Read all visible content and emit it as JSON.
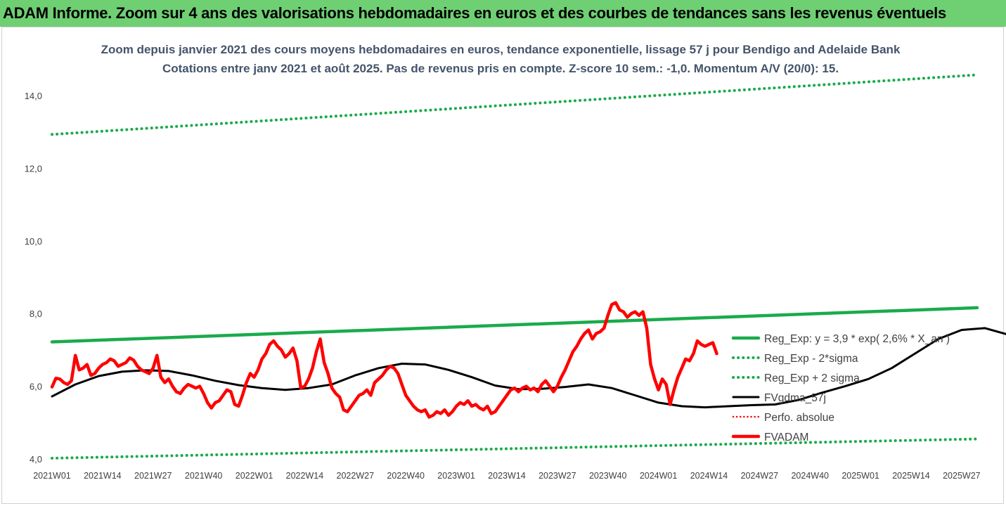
{
  "banner": {
    "title": "ADAM Informe. Zoom sur 4 ans des valorisations hebdomadaires en euros et des courbes de tendances sans les revenus éventuels"
  },
  "colors": {
    "banner_bg": "#6fcf73",
    "reg_green": "#1aab4b",
    "fv_red": "#ff0000",
    "fv_black": "#000000",
    "axis_text": "#404040",
    "title_text": "#44546a"
  },
  "chart_data": {
    "type": "line",
    "title": "Zoom depuis janvier 2021 des cours moyens hebdomadaires en euros, tendance exponentielle, lissage 57 j pour Bendigo and Adelaide Bank",
    "subtitle": "Cotations entre janv 2021 et août 2025.  Pas de revenus pris en compte. Z-score 10 sem.: -1,0. Momentum A/V (20/0): 15.",
    "xlabel": "",
    "ylabel": "",
    "ylim": [
      4.0,
      14.0
    ],
    "yticks": [
      "4,0",
      "6,0",
      "8,0",
      "10,0",
      "12,0",
      "14,0"
    ],
    "xticks": [
      "2021W01",
      "2021W14",
      "2021W27",
      "2021W40",
      "2022W01",
      "2022W14",
      "2022W27",
      "2022W40",
      "2023W01",
      "2023W14",
      "2023W27",
      "2023W40",
      "2024W01",
      "2024W14",
      "2024W27",
      "2024W40",
      "2025W01",
      "2025W14",
      "2025W27"
    ],
    "x_range_weeks": [
      0,
      238
    ],
    "grid": false,
    "legend_position": "right",
    "legend": [
      "Reg_Exp: y = 3,9 * exp( 2,6% *  X_an )",
      "Reg_Exp - 2*sigma",
      "Reg_Exp + 2 sigma",
      "FVgdma_57j",
      "Perfo. absolue",
      "FVADAM"
    ],
    "series": [
      {
        "name": "Reg_Exp: y = 3,9 * exp( 2,6% *  X_an )",
        "style": "solid",
        "color": "#1aab4b",
        "points": [
          [
            0,
            7.22
          ],
          [
            238,
            8.16
          ]
        ]
      },
      {
        "name": "Reg_Exp - 2*sigma",
        "style": "dotted",
        "color": "#1aab4b",
        "points": [
          [
            0,
            4.02
          ],
          [
            238,
            4.55
          ]
        ]
      },
      {
        "name": "Reg_Exp + 2 sigma",
        "style": "dotted",
        "color": "#1aab4b",
        "points": [
          [
            0,
            12.93
          ],
          [
            238,
            14.57
          ]
        ]
      },
      {
        "name": "FVgdma_57j",
        "style": "solid",
        "color": "#000000",
        "points": [
          [
            0,
            5.72
          ],
          [
            6,
            6.05
          ],
          [
            12,
            6.28
          ],
          [
            18,
            6.4
          ],
          [
            24,
            6.44
          ],
          [
            30,
            6.42
          ],
          [
            36,
            6.3
          ],
          [
            42,
            6.15
          ],
          [
            48,
            6.03
          ],
          [
            54,
            5.95
          ],
          [
            60,
            5.9
          ],
          [
            66,
            5.95
          ],
          [
            72,
            6.05
          ],
          [
            78,
            6.3
          ],
          [
            84,
            6.5
          ],
          [
            90,
            6.62
          ],
          [
            96,
            6.6
          ],
          [
            102,
            6.45
          ],
          [
            108,
            6.25
          ],
          [
            114,
            6.02
          ],
          [
            120,
            5.92
          ],
          [
            126,
            5.93
          ],
          [
            132,
            5.98
          ],
          [
            138,
            6.05
          ],
          [
            144,
            5.95
          ],
          [
            150,
            5.75
          ],
          [
            156,
            5.55
          ],
          [
            162,
            5.45
          ],
          [
            168,
            5.42
          ],
          [
            174,
            5.45
          ],
          [
            180,
            5.48
          ],
          [
            186,
            5.5
          ],
          [
            192,
            5.62
          ],
          [
            198,
            5.82
          ],
          [
            204,
            6.0
          ],
          [
            210,
            6.2
          ],
          [
            216,
            6.5
          ],
          [
            222,
            6.9
          ],
          [
            228,
            7.3
          ],
          [
            234,
            7.55
          ],
          [
            240,
            7.6
          ],
          [
            246,
            7.42
          ],
          [
            252,
            7.15
          ],
          [
            258,
            6.8
          ],
          [
            264,
            6.62
          ],
          [
            270,
            6.75
          ],
          [
            276,
            6.9
          ],
          [
            282,
            6.92
          ]
        ]
      },
      {
        "name": "FVADAM",
        "style": "solid",
        "color": "#ff0000",
        "points": [
          [
            0,
            5.98
          ],
          [
            1,
            6.22
          ],
          [
            2,
            6.2
          ],
          [
            3,
            6.1
          ],
          [
            4,
            6.05
          ],
          [
            5,
            6.15
          ],
          [
            6,
            6.85
          ],
          [
            7,
            6.45
          ],
          [
            8,
            6.5
          ],
          [
            9,
            6.6
          ],
          [
            10,
            6.3
          ],
          [
            11,
            6.35
          ],
          [
            12,
            6.5
          ],
          [
            13,
            6.6
          ],
          [
            14,
            6.65
          ],
          [
            15,
            6.75
          ],
          [
            16,
            6.7
          ],
          [
            17,
            6.55
          ],
          [
            18,
            6.6
          ],
          [
            19,
            6.65
          ],
          [
            20,
            6.78
          ],
          [
            21,
            6.72
          ],
          [
            22,
            6.55
          ],
          [
            23,
            6.45
          ],
          [
            24,
            6.4
          ],
          [
            25,
            6.35
          ],
          [
            26,
            6.5
          ],
          [
            27,
            6.85
          ],
          [
            28,
            6.25
          ],
          [
            29,
            6.1
          ],
          [
            30,
            6.2
          ],
          [
            31,
            6.0
          ],
          [
            32,
            5.85
          ],
          [
            33,
            5.8
          ],
          [
            34,
            5.95
          ],
          [
            35,
            6.05
          ],
          [
            36,
            6.0
          ],
          [
            37,
            5.95
          ],
          [
            38,
            6.0
          ],
          [
            39,
            5.8
          ],
          [
            40,
            5.55
          ],
          [
            41,
            5.4
          ],
          [
            42,
            5.55
          ],
          [
            43,
            5.6
          ],
          [
            44,
            5.75
          ],
          [
            45,
            5.9
          ],
          [
            46,
            5.85
          ],
          [
            47,
            5.5
          ],
          [
            48,
            5.45
          ],
          [
            49,
            5.75
          ],
          [
            50,
            6.1
          ],
          [
            51,
            6.35
          ],
          [
            52,
            6.25
          ],
          [
            53,
            6.45
          ],
          [
            54,
            6.75
          ],
          [
            55,
            6.9
          ],
          [
            56,
            7.15
          ],
          [
            57,
            7.25
          ],
          [
            58,
            7.1
          ],
          [
            59,
            7.0
          ],
          [
            60,
            6.8
          ],
          [
            61,
            6.9
          ],
          [
            62,
            7.05
          ],
          [
            63,
            6.7
          ],
          [
            64,
            5.95
          ],
          [
            65,
            6.0
          ],
          [
            66,
            6.2
          ],
          [
            67,
            6.5
          ],
          [
            68,
            6.95
          ],
          [
            69,
            7.3
          ],
          [
            70,
            6.65
          ],
          [
            71,
            6.35
          ],
          [
            72,
            5.95
          ],
          [
            73,
            5.8
          ],
          [
            74,
            5.7
          ],
          [
            75,
            5.35
          ],
          [
            76,
            5.3
          ],
          [
            77,
            5.45
          ],
          [
            78,
            5.6
          ],
          [
            79,
            5.75
          ],
          [
            80,
            5.8
          ],
          [
            81,
            5.9
          ],
          [
            82,
            5.75
          ],
          [
            83,
            6.1
          ],
          [
            84,
            6.2
          ],
          [
            85,
            6.3
          ],
          [
            86,
            6.45
          ],
          [
            87,
            6.55
          ],
          [
            88,
            6.5
          ],
          [
            89,
            6.35
          ],
          [
            90,
            6.05
          ],
          [
            91,
            5.75
          ],
          [
            92,
            5.6
          ],
          [
            93,
            5.45
          ],
          [
            94,
            5.35
          ],
          [
            95,
            5.3
          ],
          [
            96,
            5.35
          ],
          [
            97,
            5.15
          ],
          [
            98,
            5.2
          ],
          [
            99,
            5.3
          ],
          [
            100,
            5.25
          ],
          [
            101,
            5.35
          ],
          [
            102,
            5.2
          ],
          [
            103,
            5.3
          ],
          [
            104,
            5.45
          ],
          [
            105,
            5.55
          ],
          [
            106,
            5.5
          ],
          [
            107,
            5.6
          ],
          [
            108,
            5.45
          ],
          [
            109,
            5.5
          ],
          [
            110,
            5.4
          ],
          [
            111,
            5.35
          ],
          [
            112,
            5.45
          ],
          [
            113,
            5.25
          ],
          [
            114,
            5.3
          ],
          [
            115,
            5.45
          ],
          [
            116,
            5.6
          ],
          [
            117,
            5.75
          ],
          [
            118,
            5.9
          ],
          [
            119,
            5.95
          ],
          [
            120,
            5.85
          ],
          [
            121,
            5.95
          ],
          [
            122,
            6.0
          ],
          [
            123,
            5.9
          ],
          [
            124,
            5.95
          ],
          [
            125,
            5.85
          ],
          [
            126,
            6.05
          ],
          [
            127,
            6.15
          ],
          [
            128,
            6.0
          ],
          [
            129,
            5.85
          ],
          [
            130,
            6.0
          ],
          [
            131,
            6.25
          ],
          [
            132,
            6.45
          ],
          [
            133,
            6.7
          ],
          [
            134,
            6.95
          ],
          [
            135,
            7.1
          ],
          [
            136,
            7.3
          ],
          [
            137,
            7.45
          ],
          [
            138,
            7.55
          ],
          [
            139,
            7.3
          ],
          [
            140,
            7.45
          ],
          [
            141,
            7.5
          ],
          [
            142,
            7.6
          ],
          [
            143,
            7.95
          ],
          [
            144,
            8.25
          ],
          [
            145,
            8.3
          ],
          [
            146,
            8.1
          ],
          [
            147,
            8.05
          ],
          [
            148,
            7.9
          ],
          [
            149,
            8.0
          ],
          [
            150,
            8.05
          ],
          [
            151,
            7.95
          ],
          [
            152,
            8.05
          ],
          [
            153,
            7.6
          ],
          [
            154,
            6.6
          ],
          [
            155,
            6.2
          ],
          [
            156,
            5.9
          ],
          [
            157,
            6.2
          ],
          [
            158,
            6.05
          ],
          [
            159,
            5.5
          ],
          [
            160,
            5.9
          ],
          [
            161,
            6.25
          ],
          [
            162,
            6.5
          ],
          [
            163,
            6.75
          ],
          [
            164,
            6.7
          ],
          [
            165,
            6.9
          ],
          [
            166,
            7.25
          ],
          [
            167,
            7.15
          ],
          [
            168,
            7.1
          ],
          [
            169,
            7.15
          ],
          [
            170,
            7.2
          ],
          [
            171,
            6.9
          ]
        ]
      },
      {
        "name": "Perfo. absolue",
        "style": "dotted",
        "color": "#ff0000",
        "points": []
      }
    ]
  }
}
